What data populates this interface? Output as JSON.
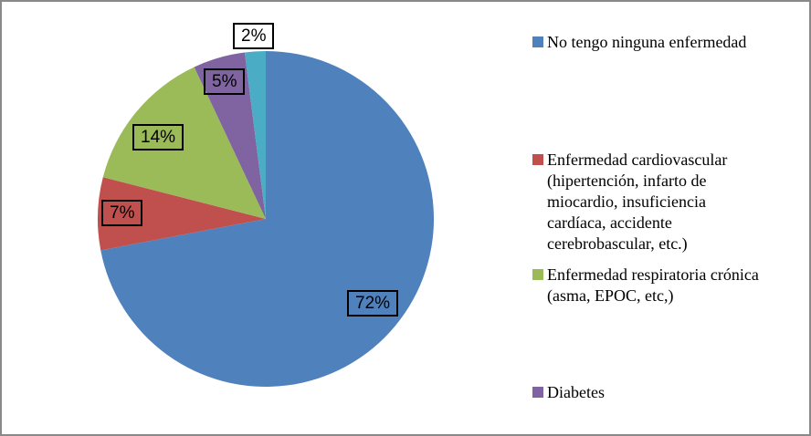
{
  "chart_data": {
    "type": "pie",
    "title": "",
    "direction": "clockwise",
    "start_angle_deg": 0,
    "legend_position": "right",
    "slices": [
      {
        "name": "No tengo ninguna enfermedad",
        "value": 72,
        "label": "72%",
        "color": "#4F81BD"
      },
      {
        "name": "Enfermedad cardiovascular (hipertención, infarto de miocardio, insuficiencia cardíaca, accidente cerebrobascular, etc.)",
        "value": 7,
        "label": "7%",
        "color": "#C0504D"
      },
      {
        "name": "Enfermedad respiratoria crónica (asma, EPOC, etc,)",
        "value": 14,
        "label": "14%",
        "color": "#9BBB59"
      },
      {
        "name": "Diabetes",
        "value": 5,
        "label": "5%",
        "color": "#8064A2"
      },
      {
        "name": "",
        "value": 2,
        "label": "2%",
        "color": "#4BACC6"
      }
    ]
  },
  "legend": {
    "items": [
      {
        "label": "No tengo ninguna enfermedad",
        "color": "#4F81BD"
      },
      {
        "label": "Enfermedad cardiovascular\n(hipertención, infarto de\nmiocardio, insuficiencia\ncardíaca, accidente\ncerebrobascular, etc.)",
        "color": "#C0504D"
      },
      {
        "label": "Enfermedad respiratoria crónica\n(asma, EPOC, etc,)",
        "color": "#9BBB59"
      },
      {
        "label": "Diabetes",
        "color": "#8064A2"
      }
    ]
  },
  "frame": {
    "border_color": "#898989",
    "background": "#FFFFFF"
  }
}
